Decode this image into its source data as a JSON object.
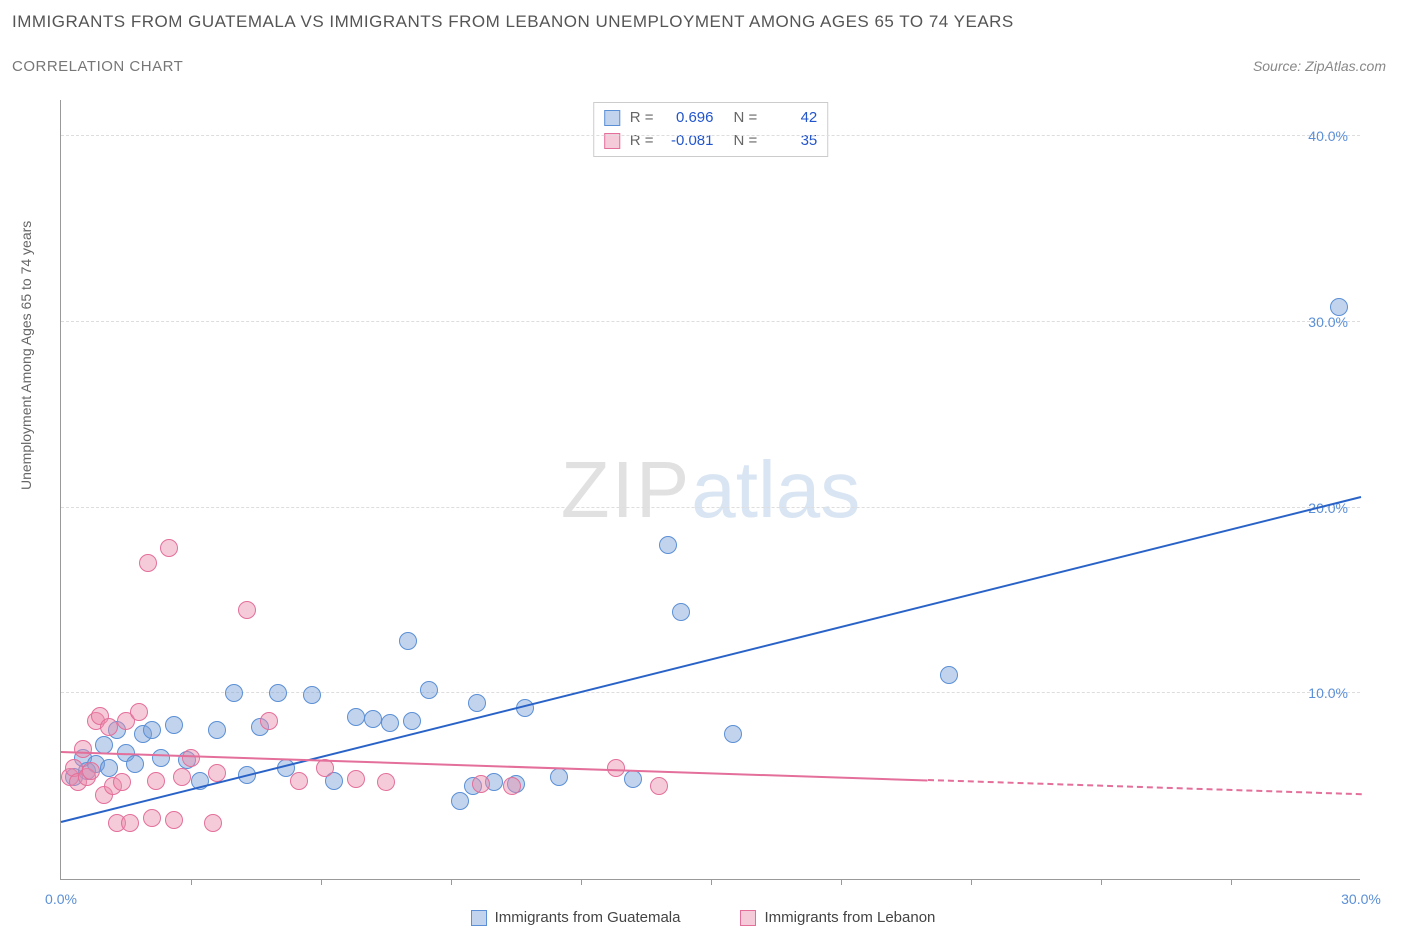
{
  "title_main": "IMMIGRANTS FROM GUATEMALA VS IMMIGRANTS FROM LEBANON UNEMPLOYMENT AMONG AGES 65 TO 74 YEARS",
  "title_sub": "CORRELATION CHART",
  "source_text": "Source: ZipAtlas.com",
  "y_axis_label": "Unemployment Among Ages 65 to 74 years",
  "watermark": {
    "part1": "ZIP",
    "part2": "atlas"
  },
  "chart": {
    "type": "scatter",
    "background_color": "#ffffff",
    "grid_color": "#dddddd",
    "axis_color": "#999999",
    "xlim": [
      0,
      30
    ],
    "ylim": [
      0,
      42
    ],
    "x_ticks": [
      0,
      30
    ],
    "x_tick_labels": [
      "0.0%",
      "30.0%"
    ],
    "x_minor_ticks": [
      3,
      6,
      9,
      12,
      15,
      18,
      21,
      24,
      27
    ],
    "y_ticks": [
      10,
      20,
      30,
      40
    ],
    "y_tick_labels": [
      "10.0%",
      "20.0%",
      "30.0%",
      "40.0%"
    ],
    "marker_radius": 9,
    "marker_stroke_width": 1,
    "series": [
      {
        "name": "Immigrants from Guatemala",
        "fill_color": "rgba(120,160,215,0.45)",
        "stroke_color": "#5b8fd6",
        "r_value": "0.696",
        "n_value": "42",
        "trend": {
          "x1": 0,
          "y1": 3.0,
          "x2": 30,
          "y2": 20.5,
          "solid_until_x": 30,
          "color": "#2a63c7",
          "width": 2
        },
        "points": [
          [
            0.3,
            5.5
          ],
          [
            0.5,
            6.5
          ],
          [
            0.6,
            5.8
          ],
          [
            0.8,
            6.2
          ],
          [
            1.0,
            7.2
          ],
          [
            1.1,
            6.0
          ],
          [
            1.3,
            8.0
          ],
          [
            1.5,
            6.8
          ],
          [
            1.7,
            6.2
          ],
          [
            1.9,
            7.8
          ],
          [
            2.1,
            8.0
          ],
          [
            2.3,
            6.5
          ],
          [
            2.6,
            8.3
          ],
          [
            2.9,
            6.4
          ],
          [
            3.2,
            5.3
          ],
          [
            3.6,
            8.0
          ],
          [
            4.0,
            10.0
          ],
          [
            4.3,
            5.6
          ],
          [
            4.6,
            8.2
          ],
          [
            5.0,
            10.0
          ],
          [
            5.2,
            6.0
          ],
          [
            5.8,
            9.9
          ],
          [
            6.3,
            5.3
          ],
          [
            6.8,
            8.7
          ],
          [
            7.2,
            8.6
          ],
          [
            7.6,
            8.4
          ],
          [
            8.0,
            12.8
          ],
          [
            8.1,
            8.5
          ],
          [
            8.5,
            10.2
          ],
          [
            9.2,
            4.2
          ],
          [
            9.5,
            5.0
          ],
          [
            9.6,
            9.5
          ],
          [
            10.0,
            5.2
          ],
          [
            10.5,
            5.1
          ],
          [
            10.7,
            9.2
          ],
          [
            11.5,
            5.5
          ],
          [
            13.2,
            5.4
          ],
          [
            14.0,
            18.0
          ],
          [
            14.3,
            14.4
          ],
          [
            15.5,
            7.8
          ],
          [
            20.5,
            11.0
          ],
          [
            29.5,
            30.8
          ]
        ]
      },
      {
        "name": "Immigrants from Lebanon",
        "fill_color": "rgba(235,140,170,0.45)",
        "stroke_color": "#e36f9a",
        "r_value": "-0.081",
        "n_value": "35",
        "trend": {
          "x1": 0,
          "y1": 6.8,
          "x2": 30,
          "y2": 4.5,
          "solid_until_x": 20,
          "color": "#e36f9a",
          "width": 2
        },
        "points": [
          [
            0.2,
            5.5
          ],
          [
            0.3,
            6.0
          ],
          [
            0.4,
            5.2
          ],
          [
            0.5,
            7.0
          ],
          [
            0.6,
            5.5
          ],
          [
            0.7,
            5.8
          ],
          [
            0.8,
            8.5
          ],
          [
            0.9,
            8.8
          ],
          [
            1.0,
            4.5
          ],
          [
            1.1,
            8.2
          ],
          [
            1.2,
            5.0
          ],
          [
            1.3,
            3.0
          ],
          [
            1.4,
            5.2
          ],
          [
            1.5,
            8.5
          ],
          [
            1.6,
            3.0
          ],
          [
            1.8,
            9.0
          ],
          [
            2.0,
            17.0
          ],
          [
            2.1,
            3.3
          ],
          [
            2.2,
            5.3
          ],
          [
            2.5,
            17.8
          ],
          [
            2.6,
            3.2
          ],
          [
            2.8,
            5.5
          ],
          [
            3.0,
            6.5
          ],
          [
            3.5,
            3.0
          ],
          [
            3.6,
            5.7
          ],
          [
            4.3,
            14.5
          ],
          [
            4.8,
            8.5
          ],
          [
            5.5,
            5.3
          ],
          [
            6.1,
            6.0
          ],
          [
            6.8,
            5.4
          ],
          [
            7.5,
            5.2
          ],
          [
            9.7,
            5.1
          ],
          [
            10.4,
            5.0
          ],
          [
            12.8,
            6.0
          ],
          [
            13.8,
            5.0
          ]
        ]
      }
    ]
  },
  "stats_box": {
    "r_label": "R =",
    "n_label": "N =",
    "value_color": "#2255cc",
    "label_color": "#666666"
  },
  "legend": {
    "items": [
      {
        "label": "Immigrants from Guatemala",
        "fill": "rgba(120,160,215,0.45)",
        "stroke": "#5b8fd6"
      },
      {
        "label": "Immigrants from Lebanon",
        "fill": "rgba(235,140,170,0.45)",
        "stroke": "#e36f9a"
      }
    ]
  }
}
